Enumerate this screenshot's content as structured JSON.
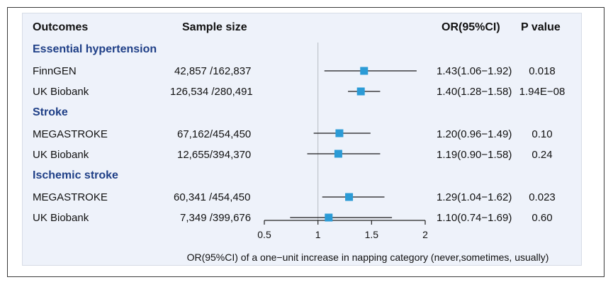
{
  "headers": {
    "outcomes": "Outcomes",
    "sample_size": "Sample size",
    "or": "OR(95%CI)",
    "p": "P value"
  },
  "chart_data": {
    "type": "forest",
    "xlabel": "OR(95%CI) of a one−unit increase in napping category (never,sometimes, usually)",
    "xlim": [
      0.5,
      2
    ],
    "xticks": [
      0.5,
      1,
      1.5,
      2
    ],
    "xtick_labels": [
      "0.5",
      "1",
      "1.5",
      "2"
    ],
    "reference_line": 1,
    "marker_color": "#2b9bd6",
    "groups": [
      {
        "name": "Essential hypertension",
        "rows": [
          {
            "source": "FinnGEN",
            "sample_size": "42,857 /162,837",
            "or": 1.43,
            "lower": 1.06,
            "upper": 1.92,
            "or_text": "1.43(1.06−1.92)",
            "p": "0.018"
          },
          {
            "source": "UK Biobank",
            "sample_size": "126,534 /280,491",
            "or": 1.4,
            "lower": 1.28,
            "upper": 1.58,
            "or_text": "1.40(1.28−1.58)",
            "p": "1.94E−08"
          }
        ]
      },
      {
        "name": "Stroke",
        "rows": [
          {
            "source": "MEGASTROKE",
            "sample_size": "67,162/454,450",
            "or": 1.2,
            "lower": 0.96,
            "upper": 1.49,
            "or_text": "1.20(0.96−1.49)",
            "p": "0.10"
          },
          {
            "source": "UK Biobank",
            "sample_size": "12,655/394,370",
            "or": 1.19,
            "lower": 0.9,
            "upper": 1.58,
            "or_text": "1.19(0.90−1.58)",
            "p": "0.24"
          }
        ]
      },
      {
        "name": "Ischemic stroke",
        "rows": [
          {
            "source": "MEGASTROKE",
            "sample_size": "60,341 /454,450",
            "or": 1.29,
            "lower": 1.04,
            "upper": 1.62,
            "or_text": "1.29(1.04−1.62)",
            "p": "0.023"
          },
          {
            "source": "UK Biobank",
            "sample_size": "7,349 /399,676",
            "or": 1.1,
            "lower": 0.74,
            "upper": 1.69,
            "or_text": "1.10(0.74−1.69)",
            "p": "0.60"
          }
        ]
      }
    ]
  }
}
